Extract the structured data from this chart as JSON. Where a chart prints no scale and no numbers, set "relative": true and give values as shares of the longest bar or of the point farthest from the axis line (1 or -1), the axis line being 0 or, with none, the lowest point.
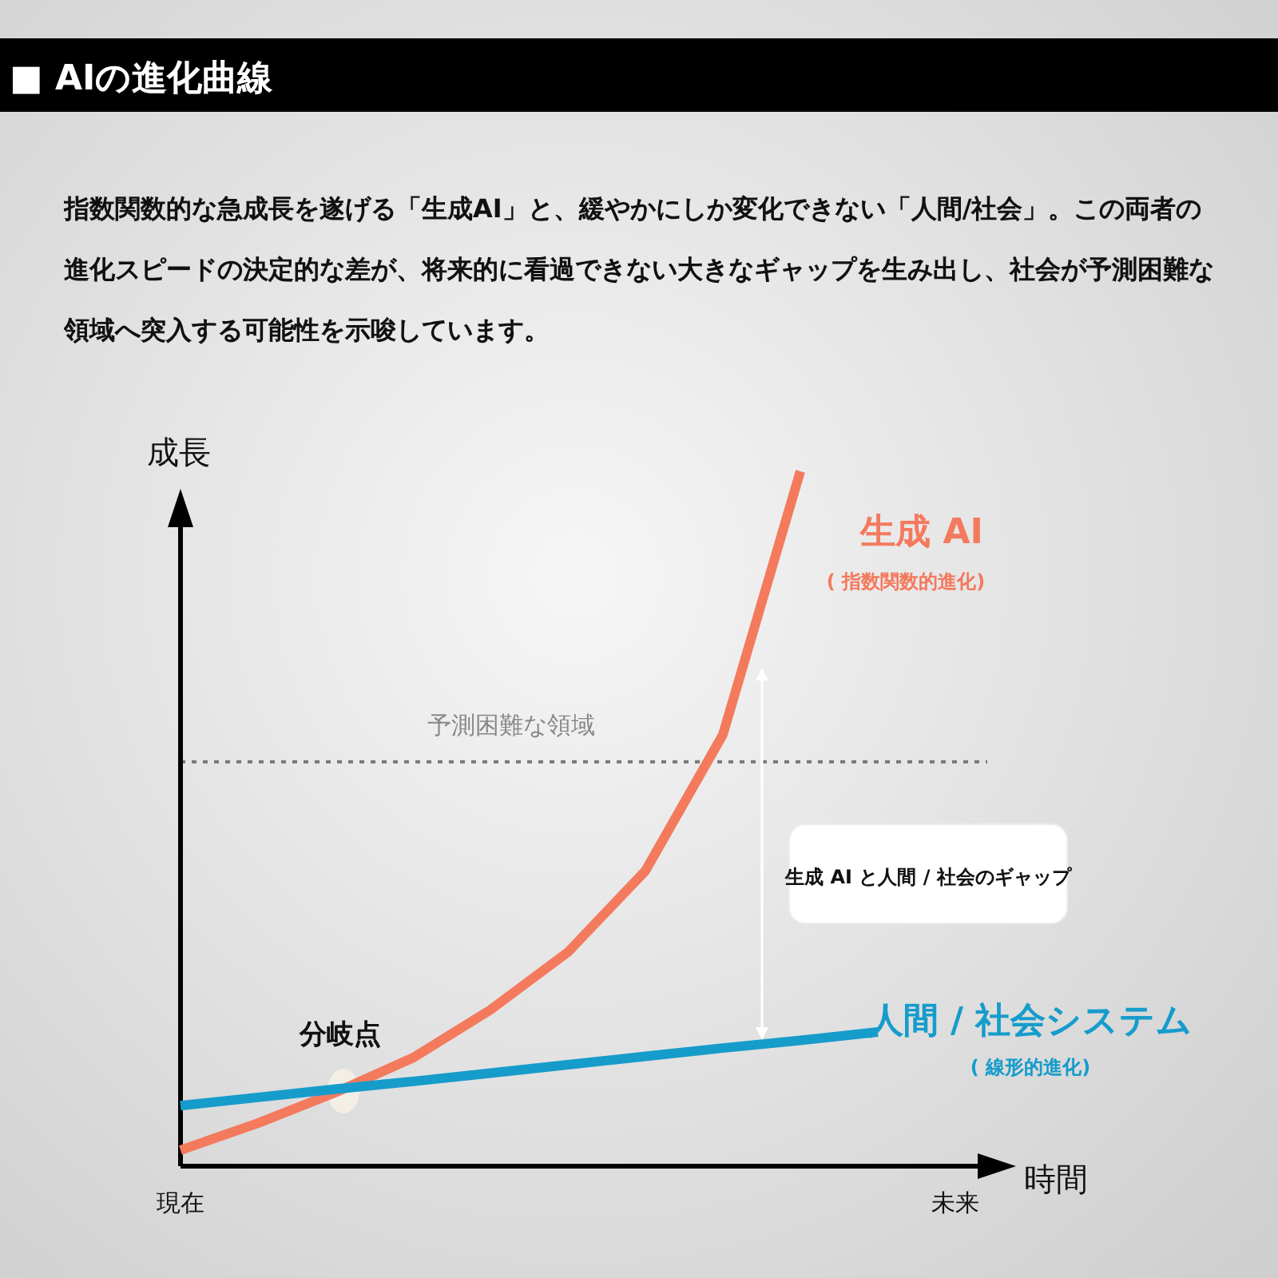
{
  "chart_data": {
    "type": "line",
    "relative": true,
    "title": "■ AIの進化曲線",
    "subtitle": "指数関数的な急成長を遂げる「生成AI」と、緩やかにしか変化できない「人間/社会」。この両者の進化スピードの決定的な差が、将来的に看過できない大きなギャップを生み出し、社会が予測困難な領域へ突入する可能性を示唆しています。",
    "xlabel": "時間",
    "ylabel": "成長",
    "categories": [
      "現在",
      null,
      null,
      null,
      null,
      null,
      null,
      null,
      null,
      null,
      "未来"
    ],
    "series": [
      {
        "name": "生成 AI",
        "color": "#f47a5e",
        "values": [
          0.023,
          0.062,
          0.106,
          0.156,
          0.225,
          0.308,
          0.425,
          0.621,
          1,
          null,
          null
        ]
      },
      {
        "name": "人間 / 社会システム",
        "color": "#169ccb",
        "values": [
          0.087,
          0.099,
          0.111,
          0.122,
          0.134,
          0.146,
          0.158,
          0.17,
          0.181,
          0.193,
          null
        ]
      }
    ],
    "ref_lines": [
      {
        "axis": "y",
        "value": 0.582,
        "label": "予測困難な領域",
        "color": "#777777",
        "line_style": "dotted"
      }
    ],
    "annotations": [
      "( 指数関数的進化)",
      "( 線形的進化)",
      "分岐点",
      "生成 AI と人間 / 社会のギャップ"
    ],
    "line_style": "solid"
  }
}
